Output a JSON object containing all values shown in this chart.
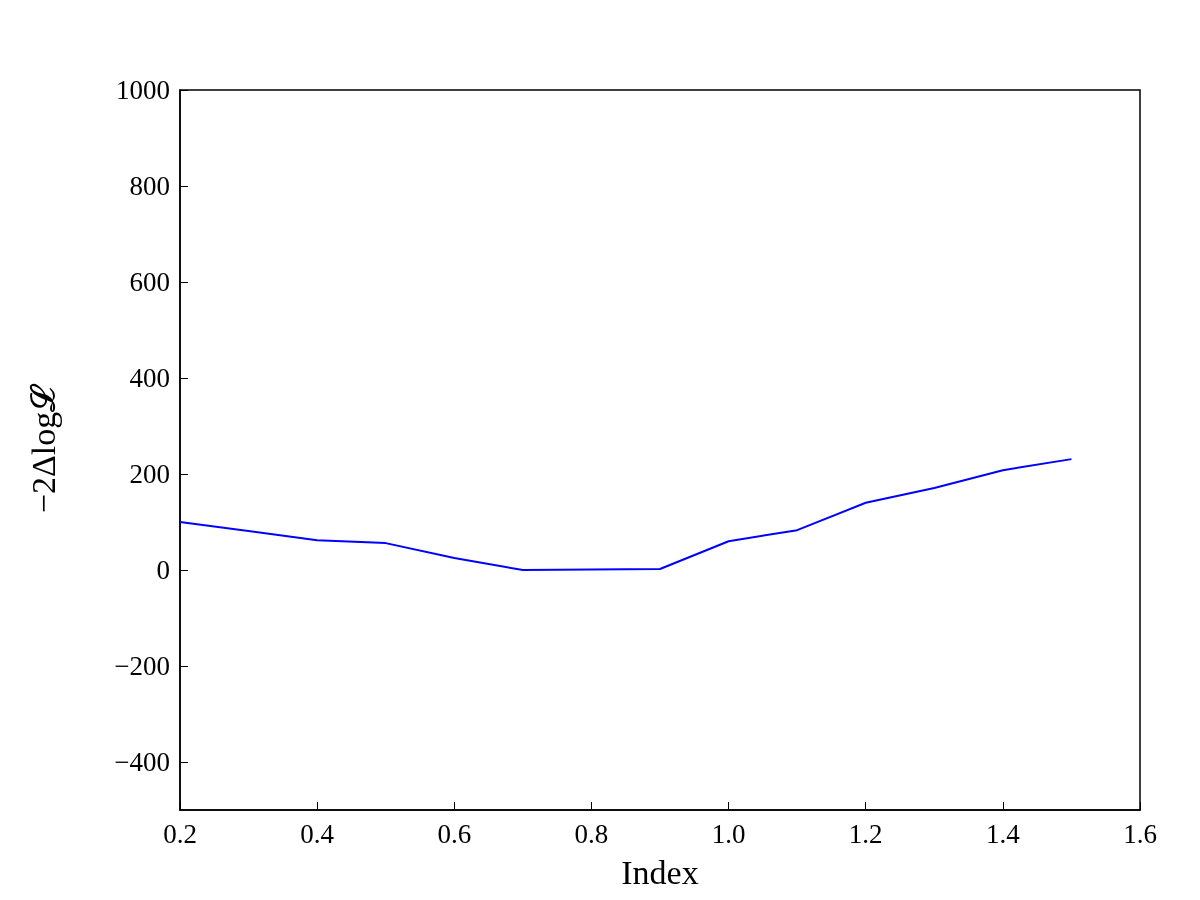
{
  "chart_data": {
    "type": "line",
    "xlabel": "Index",
    "ylabel": "−2Δlog𝓛",
    "x": [
      0.2,
      0.4,
      0.5,
      0.6,
      0.7,
      0.9,
      1.0,
      1.1,
      1.2,
      1.3,
      1.4,
      1.5
    ],
    "series": [
      {
        "color": "#0000ff",
        "values": [
          100,
          62,
          56,
          25,
          0,
          2,
          60,
          83,
          140,
          171,
          208,
          231
        ]
      }
    ],
    "xlim": [
      0.2,
      1.6
    ],
    "xticks": [
      0.2,
      0.4,
      0.6,
      0.8,
      {
        "value": 1,
        "label": "1.0"
      },
      1.2,
      1.4,
      1.6
    ],
    "ylim": [
      -500,
      1000
    ],
    "yticks": [
      {
        "value": -400,
        "label": "−400"
      },
      {
        "value": -200,
        "label": "−200"
      },
      0,
      200,
      400,
      600,
      800,
      1000
    ],
    "grid": false,
    "marker": "none",
    "line_style": "solid"
  }
}
